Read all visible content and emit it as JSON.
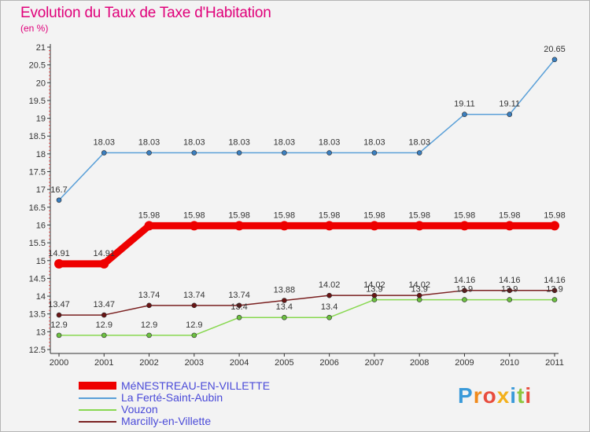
{
  "title": "Evolution du Taux de Taxe d'Habitation",
  "subtitle": "(en %)",
  "logo_text": "Proxiti",
  "chart_data": {
    "type": "line",
    "title": "Evolution du Taux de Taxe d'Habitation",
    "subtitle": "(en %)",
    "ylim": [
      12.5,
      21
    ],
    "yticks": [
      12.5,
      13,
      13.5,
      14,
      14.5,
      15,
      15.5,
      16,
      16.5,
      17,
      17.5,
      18,
      18.5,
      19,
      19.5,
      20,
      20.5,
      21
    ],
    "categories": [
      "2000",
      "2001",
      "2002",
      "2003",
      "2004",
      "2005",
      "2006",
      "2007",
      "2008",
      "2009",
      "2010",
      "2011"
    ],
    "grid": false,
    "legend": "bottom-left",
    "series": [
      {
        "name": "MéNESTREAU-EN-VILLETTE",
        "color": "#ee0000",
        "values": [
          14.91,
          14.91,
          15.98,
          15.98,
          15.98,
          15.98,
          15.98,
          15.98,
          15.98,
          15.98,
          15.98,
          15.98
        ]
      },
      {
        "name": "La Ferté-Saint-Aubin",
        "color": "#5aa0d8",
        "values": [
          16.7,
          18.03,
          18.03,
          18.03,
          18.03,
          18.03,
          18.03,
          18.03,
          18.03,
          19.11,
          19.11,
          20.65
        ]
      },
      {
        "name": "Vouzon",
        "color": "#88d850",
        "values": [
          12.9,
          12.9,
          12.9,
          12.9,
          13.4,
          13.4,
          13.4,
          13.9,
          13.9,
          13.9,
          13.9,
          13.9
        ]
      },
      {
        "name": "Marcilly-en-Villette",
        "color": "#7a2020",
        "values": [
          13.47,
          13.47,
          13.74,
          13.74,
          13.74,
          13.88,
          14.02,
          14.02,
          14.02,
          14.16,
          14.16,
          14.16
        ]
      }
    ],
    "data_labels": [
      [
        "14.91",
        "14.91",
        "15.98",
        "15.98",
        "15.98",
        "15.98",
        "15.98",
        "15.98",
        "15.98",
        "15.98",
        "15.98",
        "15.98"
      ],
      [
        "16.7",
        "18.03",
        "18.03",
        "18.03",
        "18.03",
        "18.03",
        "18.03",
        "18.03",
        "18.03",
        "19.11",
        "19.11",
        "20.65"
      ],
      [
        "12.9",
        "12.9",
        "12.9",
        "12.9",
        "13.4",
        "13.4",
        "13.4",
        "13.9",
        "13.9",
        "13.9",
        "13.9",
        "13.9"
      ],
      [
        "13.47",
        "13.47",
        "13.74",
        "13.74",
        "13.74",
        "13.88",
        "14.02",
        "14.02",
        "14.02",
        "14.16",
        "14.16",
        "14.16"
      ]
    ]
  }
}
